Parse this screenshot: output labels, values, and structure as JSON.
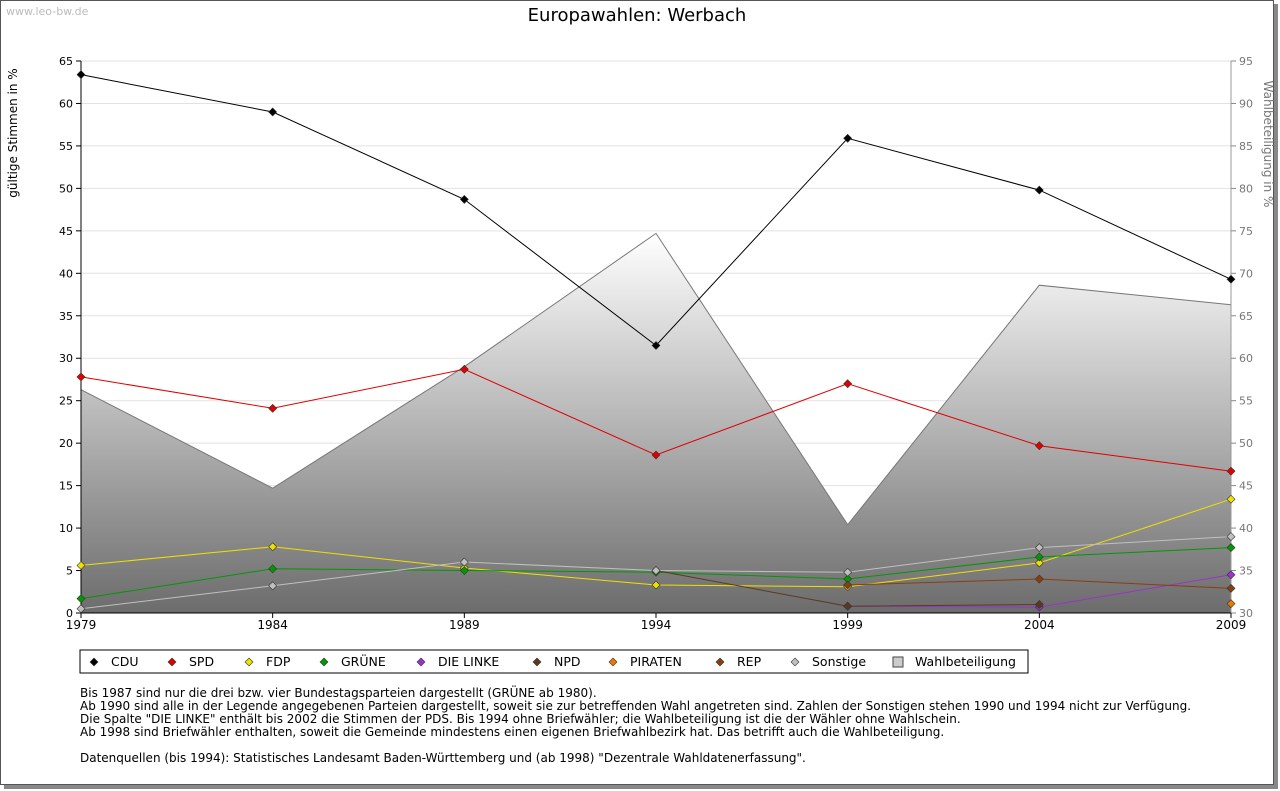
{
  "watermark": "www.leo-bw.de",
  "chart_data": {
    "type": "line",
    "title": "Europawahlen: Werbach",
    "ylabel": "gültige Stimmen in %",
    "y2label": "Wahlbeteiligung in %",
    "x": [
      "1979",
      "1984",
      "1989",
      "1994",
      "1999",
      "2004",
      "2009"
    ],
    "ylim": [
      0,
      65
    ],
    "yticks": [
      "0",
      "5",
      "10",
      "15",
      "20",
      "25",
      "30",
      "35",
      "40",
      "45",
      "50",
      "55",
      "60",
      "65"
    ],
    "y2lim": [
      30,
      95
    ],
    "y2ticks": [
      "30",
      "35",
      "40",
      "45",
      "50",
      "55",
      "60",
      "65",
      "70",
      "75",
      "80",
      "85",
      "90",
      "95"
    ],
    "grid": true,
    "area": {
      "name": "Wahlbeteiligung",
      "values": [
        56.3,
        44.7,
        59.0,
        74.7,
        40.4,
        68.6,
        66.3
      ]
    },
    "series": [
      {
        "name": "CDU",
        "color": "#000000",
        "values": [
          63.4,
          59.0,
          48.7,
          31.5,
          55.9,
          49.8,
          39.3
        ]
      },
      {
        "name": "SPD",
        "color": "#e00000",
        "values": [
          27.8,
          24.1,
          28.7,
          18.6,
          27.0,
          19.7,
          16.7
        ]
      },
      {
        "name": "FDP",
        "color": "#f0e000",
        "values": [
          5.6,
          7.8,
          5.3,
          3.3,
          3.1,
          5.9,
          13.4
        ]
      },
      {
        "name": "GRÜNE",
        "color": "#009900",
        "values": [
          1.7,
          5.2,
          5.0,
          4.8,
          4.0,
          6.6,
          7.7
        ]
      },
      {
        "name": "DIE LINKE",
        "color": "#9933cc",
        "values": [
          null,
          null,
          null,
          null,
          0.8,
          0.7,
          4.5
        ]
      },
      {
        "name": "NPD",
        "color": "#5a3a1e",
        "values": [
          null,
          null,
          null,
          5.0,
          0.8,
          1.0,
          null
        ]
      },
      {
        "name": "PIRATEN",
        "color": "#ee7700",
        "values": [
          null,
          null,
          null,
          null,
          null,
          null,
          1.1
        ]
      },
      {
        "name": "REP",
        "color": "#8a3e10",
        "values": [
          null,
          null,
          null,
          null,
          3.3,
          4.0,
          2.9
        ]
      },
      {
        "name": "Sonstige",
        "color": "#c0c0c0",
        "values": [
          0.5,
          3.2,
          6.0,
          5.0,
          4.8,
          7.7,
          9.0
        ]
      }
    ],
    "legend": [
      "CDU",
      "SPD",
      "FDP",
      "GRÜNE",
      "DIE LINKE",
      "NPD",
      "PIRATEN",
      "REP",
      "Sonstige",
      "Wahlbeteiligung"
    ]
  },
  "notes": [
    "Bis 1987 sind nur die drei bzw. vier Bundestagsparteien dargestellt (GRÜNE ab 1980).",
    "Ab 1990 sind alle in der Legende angegebenen Parteien dargestellt, soweit sie zur betreffenden Wahl angetreten sind. Zahlen der Sonstigen stehen 1990 und 1994 nicht zur Verfügung.",
    "Die Spalte \"DIE LINKE\" enthält bis 2002 die Stimmen der PDS. Bis 1994 ohne Briefwähler; die Wahlbeteiligung ist die der Wähler ohne Wahlschein.",
    "Ab 1998 sind Briefwähler enthalten, soweit die Gemeinde mindestens einen eigenen Briefwahlbezirk hat. Das betrifft auch die Wahlbeteiligung."
  ],
  "source": "Datenquellen (bis 1994): Statistisches Landesamt Baden-Württemberg und (ab 1998) \"Dezentrale Wahldatenerfassung\"."
}
